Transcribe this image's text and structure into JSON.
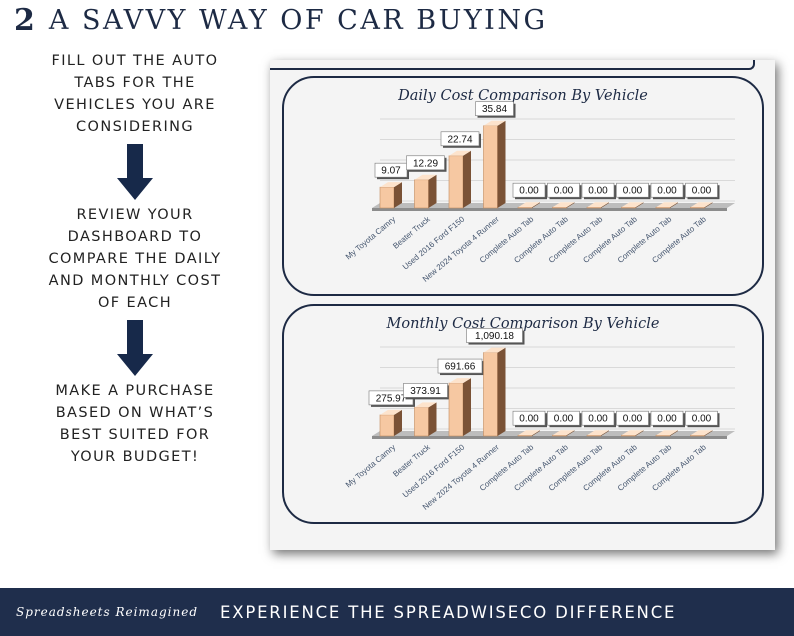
{
  "header": {
    "step_number": "2",
    "title": "A SAVVY WAY OF CAR BUYING"
  },
  "steps": [
    {
      "text": "FILL OUT THE AUTO\nTABS FOR THE\nVEHICLES YOU ARE\nCONSIDERING"
    },
    {
      "text": "REVIEW YOUR\nDASHBOARD TO\nCOMPARE THE DAILY\nAND MONTHLY COST\nOF EACH"
    },
    {
      "text": "MAKE A PURCHASE\nBASED ON WHAT’S\nBEST SUITED FOR\nYOUR BUDGET!"
    }
  ],
  "icons": {
    "step_arrow": "arrow-down-icon"
  },
  "colors": {
    "navy": "#1d2a44",
    "bar": "#f6c8a2",
    "footer": "#1f2e4c"
  },
  "footer": {
    "brand": "Spreadsheets Reimagined",
    "tagline": "EXPERIENCE THE SPREADWISECO DIFFERENCE"
  },
  "chart_data": [
    {
      "type": "bar",
      "title": "Daily Cost Comparison By Vehicle",
      "categories": [
        "My Toyota Camry",
        "Beater Truck",
        "Used 2016 Ford F150",
        "New 2024 Toyota 4 Runner",
        "Complete Auto Tab",
        "Complete Auto Tab",
        "Complete Auto Tab",
        "Complete Auto Tab",
        "Complete Auto Tab",
        "Complete Auto Tab"
      ],
      "values": [
        9.07,
        12.29,
        22.74,
        35.84,
        0,
        0,
        0,
        0,
        0,
        0
      ],
      "data_labels": [
        "9.07",
        "12.29",
        "22.74",
        "35.84",
        "0.00",
        "0.00",
        "0.00",
        "0.00",
        "0.00",
        "0.00"
      ],
      "ylim": [
        0,
        40
      ],
      "grid": true,
      "legend": "none"
    },
    {
      "type": "bar",
      "title": "Monthly Cost Comparison By Vehicle",
      "categories": [
        "My Toyota Camry",
        "Beater Truck",
        "Used 2016 Ford F150",
        "New 2024 Toyota 4 Runner",
        "Complete Auto Tab",
        "Complete Auto Tab",
        "Complete Auto Tab",
        "Complete Auto Tab",
        "Complete Auto Tab",
        "Complete Auto Tab"
      ],
      "values": [
        275.97,
        373.91,
        691.66,
        1090.18,
        0,
        0,
        0,
        0,
        0,
        0
      ],
      "data_labels": [
        "275.97",
        "373.91",
        "691.66",
        "1,090.18",
        "0.00",
        "0.00",
        "0.00",
        "0.00",
        "0.00",
        "0.00"
      ],
      "ylim": [
        0,
        1200
      ],
      "grid": true,
      "legend": "none"
    }
  ]
}
